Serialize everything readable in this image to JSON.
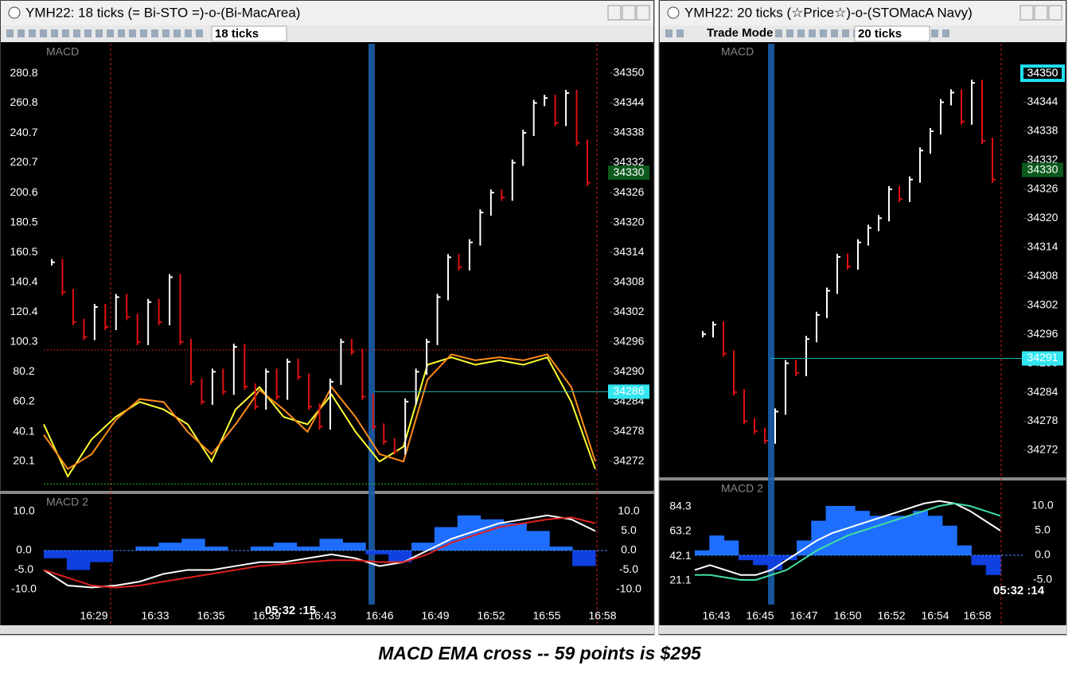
{
  "windows": [
    {
      "title": "YMH22: 18 ticks (= Bi-STO =)-o-(Bi-MacArea)",
      "ticks_box": "18 ticks",
      "price_panel": {
        "label": "MACD",
        "ylim": [
          34266.4,
          34355.9
        ],
        "yticks": [
          34350,
          34344,
          34338,
          34332,
          34326,
          34320,
          34314,
          34308,
          34302,
          34296,
          34290,
          34284,
          34278,
          34272
        ],
        "osc_ylim": [
          1.4,
          300.6
        ],
        "osc_ticks": [
          280.8,
          260.8,
          240.7,
          220.7,
          200.6,
          180.5,
          160.5,
          140.4,
          120.4,
          100.3,
          80.2,
          60.2,
          40.1,
          20.1
        ],
        "closes": [
          34312,
          34306,
          34300,
          34297,
          34303,
          34299,
          34305,
          34301,
          34296,
          34304,
          34300,
          34309,
          34296,
          34288,
          34284,
          34290,
          34286,
          34295,
          34287,
          34283,
          34290,
          34285,
          34292,
          34289,
          34283,
          34279,
          34288,
          34296,
          34294,
          34285,
          34279,
          34276,
          34274,
          34284,
          34290,
          34296,
          34305,
          34313,
          34311,
          34316,
          34322,
          34326,
          34325,
          34332,
          34338,
          34344,
          34345,
          34340,
          34346,
          34336,
          34328
        ],
        "osc_lines": [
          {
            "color": "#ffff33",
            "values": [
              45,
              10,
              35,
              50,
              60,
              55,
              45,
              20,
              55,
              70,
              50,
              45,
              65,
              40,
              20,
              30,
              85,
              90,
              85,
              88,
              85,
              90,
              60,
              15
            ]
          },
          {
            "color": "#ff8c1a",
            "values": [
              38,
              15,
              25,
              48,
              62,
              60,
              40,
              25,
              45,
              68,
              55,
              40,
              70,
              50,
              25,
              20,
              75,
              92,
              88,
              90,
              88,
              92,
              70,
              20
            ]
          }
        ],
        "flags": [
          {
            "value": 34330,
            "label": "34330",
            "kind": "last"
          },
          {
            "value": 34286,
            "label": "34286",
            "kind": "mark"
          }
        ]
      },
      "macd_panel": {
        "label": "MACD 2",
        "ylim": [
          -13.9,
          14.3
        ],
        "yticks": [
          {
            "value": 10,
            "label": "10.0"
          },
          {
            "value": 5,
            "label": "5.0"
          },
          {
            "value": 0,
            "label": "0.0"
          },
          {
            "value": -5,
            "label": "-5.0"
          },
          {
            "value": -10,
            "label": "-10.0"
          }
        ],
        "left_ticks": [
          {
            "value": 10,
            "label": "10.0"
          },
          {
            "value": 0,
            "label": "0.0"
          },
          {
            "value": -5,
            "label": "-5.0"
          },
          {
            "value": -10,
            "label": "-10.0"
          }
        ],
        "histogram": [
          -2,
          -5,
          -3,
          0,
          1,
          2,
          3,
          1,
          0,
          1,
          2,
          1,
          3,
          2,
          -1,
          -3,
          2,
          6,
          9,
          8,
          7,
          5,
          1,
          -4
        ],
        "lines": [
          {
            "color": "#ffffff",
            "values": [
              -5,
              -9,
              -9.5,
              -9,
              -8,
              -6,
              -5,
              -5,
              -4,
              -3,
              -3,
              -2,
              -1,
              -2,
              -4,
              -3,
              0,
              3,
              5,
              7,
              8,
              9,
              8,
              5
            ]
          },
          {
            "color": "#e02020",
            "values": [
              -5,
              -7,
              -9,
              -9.5,
              -9,
              -8,
              -7,
              -6,
              -5,
              -4,
              -3.5,
              -3,
              -2.5,
              -2.5,
              -3,
              -3,
              -1,
              2,
              4,
              6,
              7,
              8,
              8.5,
              7
            ]
          }
        ]
      },
      "time_stamp": "05:32 :15",
      "times": [
        "16:29",
        "16:33",
        "16:35",
        "16:39",
        "16:43",
        "16:46",
        "16:49",
        "16:52",
        "16:55",
        "16:58"
      ]
    },
    {
      "title": "YMH22: 20 ticks (☆Price☆)-o-(STOMacA Navy)",
      "mode": "Trade Mode",
      "ticks_box": "20 ticks",
      "price_panel": {
        "label": "MACD",
        "ylim": [
          34266.4,
          34356.1
        ],
        "yticks": [
          34350,
          34344,
          34338,
          34332,
          34326,
          34320,
          34314,
          34308,
          34302,
          34296,
          34290,
          34284,
          34278,
          34272
        ],
        "closes": [
          34296,
          34298,
          34292,
          34284,
          34278,
          34276,
          34274,
          34280,
          34290,
          34288,
          34295,
          34300,
          34305,
          34312,
          34310,
          34315,
          34318,
          34320,
          34326,
          34324,
          34328,
          34334,
          34338,
          34344,
          34346,
          34340,
          34348,
          34336,
          34328
        ],
        "flags": [
          {
            "value": 34350,
            "label": "34350",
            "kind": "box"
          },
          {
            "value": 34330,
            "label": "34330",
            "kind": "last"
          },
          {
            "value": 34291,
            "label": "34291",
            "kind": "mark"
          }
        ]
      },
      "macd_panel": {
        "label": "MACD 2",
        "ylim": [
          -10,
          15
        ],
        "yticks": [
          {
            "value": 10,
            "label": "10.0"
          },
          {
            "value": 5,
            "label": "5.0"
          },
          {
            "value": 0,
            "label": "0.0"
          },
          {
            "value": -5,
            "label": "-5.0"
          }
        ],
        "osc_ylim": [
          0.7,
          106
        ],
        "left_ticks": [
          84.3,
          63.2,
          42.1,
          21.1
        ],
        "histogram": [
          1,
          4,
          3,
          -1,
          -2,
          -3,
          -1,
          3,
          7,
          10,
          10,
          9,
          8,
          8,
          8,
          9,
          8,
          6,
          2,
          -2,
          -4
        ],
        "lines": [
          {
            "color": "#ffffff",
            "values": [
              -3,
              -2,
              -3,
              -4,
              -4,
              -3,
              -1,
              1,
              3,
              4.5,
              5.5,
              6.5,
              7.5,
              8.5,
              9.5,
              10.5,
              11,
              10.5,
              9,
              7,
              5
            ]
          },
          {
            "color": "#40e0a0",
            "values": [
              -4,
              -4,
              -4.5,
              -5,
              -5,
              -4,
              -3,
              -1,
              1,
              2.5,
              4,
              5,
              6,
              7,
              8,
              9,
              10,
              10.5,
              10,
              9,
              8
            ]
          }
        ]
      },
      "time_stamp": "05:32 :14",
      "times": [
        "16:43",
        "16:45",
        "16:47",
        "16:50",
        "16:52",
        "16:54",
        "16:58"
      ]
    }
  ],
  "caption": "MACD EMA cross -- 59 points is $295"
}
